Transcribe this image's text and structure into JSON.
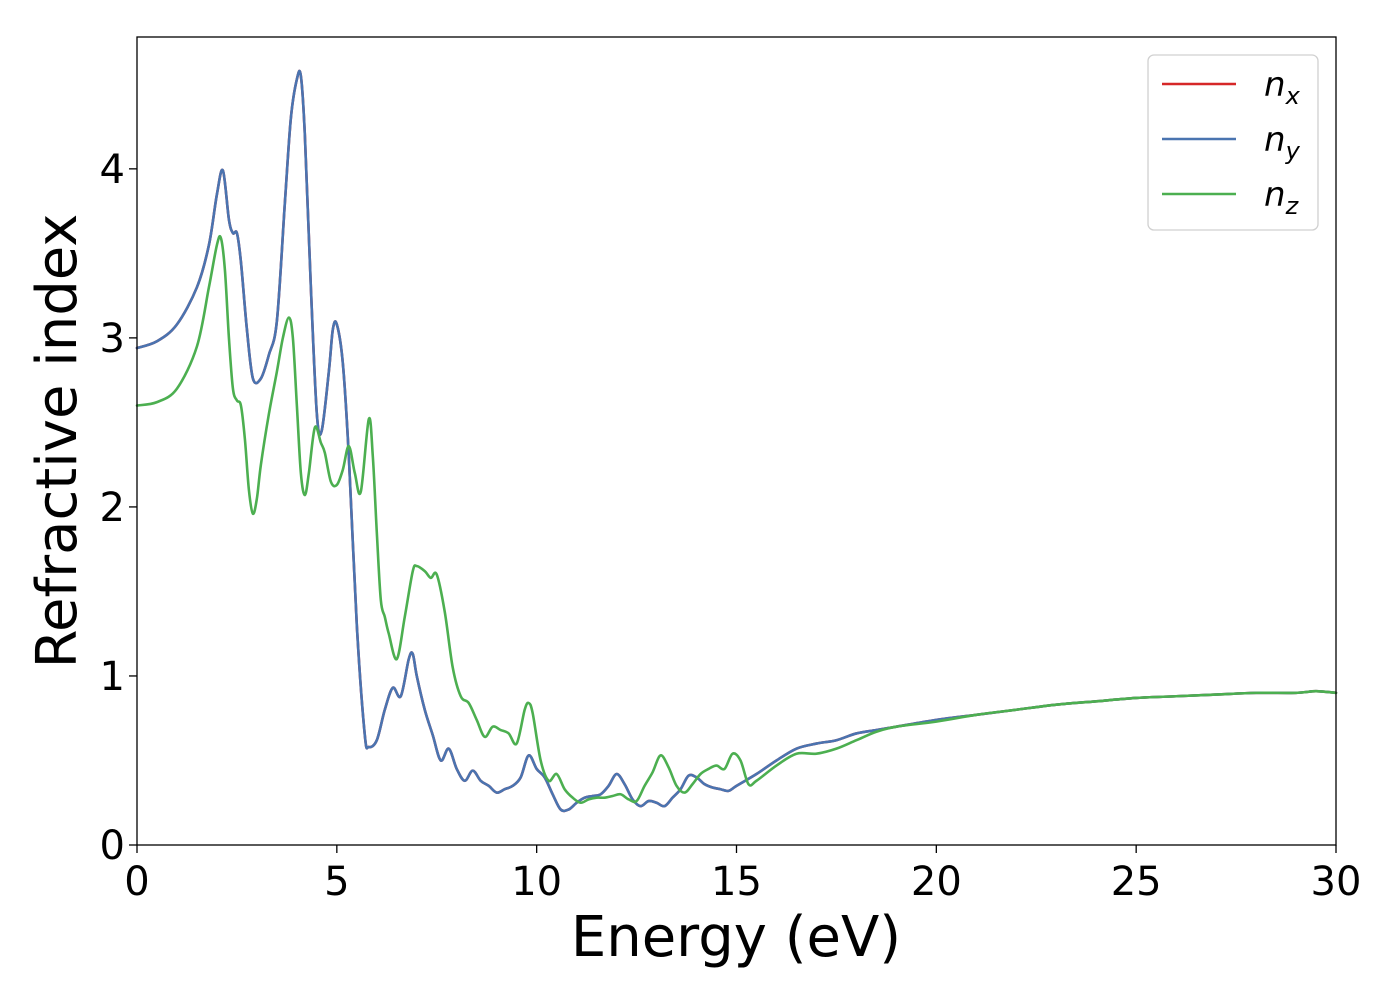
{
  "chart_data": {
    "type": "line",
    "title": "",
    "xlabel": "Energy (eV)",
    "ylabel": "Refractive index",
    "xlim": [
      0,
      30
    ],
    "ylim": [
      0,
      4.78
    ],
    "xticks": [
      0,
      5,
      10,
      15,
      20,
      25,
      30
    ],
    "yticks": [
      0,
      1,
      2,
      3,
      4
    ],
    "xtick_labels": [
      "0",
      "5",
      "10",
      "15",
      "20",
      "25",
      "30"
    ],
    "ytick_labels": [
      "0",
      "1",
      "2",
      "3",
      "4"
    ],
    "grid": false,
    "legend_position": "top-right",
    "series": [
      {
        "name": "n_x",
        "label_base": "n",
        "label_sub": "x",
        "color": "#d62728",
        "x": [
          0,
          0.5,
          1.0,
          1.5,
          1.8,
          2.0,
          2.15,
          2.3,
          2.4,
          2.5,
          2.6,
          2.75,
          2.9,
          3.1,
          3.3,
          3.5,
          3.7,
          3.85,
          4.0,
          4.1,
          4.2,
          4.35,
          4.5,
          4.62,
          4.8,
          4.9,
          5.0,
          5.15,
          5.3,
          5.5,
          5.7,
          5.8,
          6.0,
          6.2,
          6.4,
          6.6,
          6.8,
          6.9,
          7.0,
          7.2,
          7.4,
          7.6,
          7.8,
          8.0,
          8.2,
          8.4,
          8.6,
          8.8,
          9.0,
          9.2,
          9.4,
          9.6,
          9.8,
          10.0,
          10.2,
          10.4,
          10.6,
          10.8,
          11.0,
          11.2,
          11.4,
          11.6,
          11.8,
          12.0,
          12.2,
          12.4,
          12.6,
          12.8,
          13.0,
          13.2,
          13.4,
          13.6,
          13.8,
          14.0,
          14.2,
          14.4,
          14.6,
          14.8,
          15.0,
          15.5,
          16.0,
          16.5,
          17.0,
          17.5,
          18.0,
          18.5,
          19.0,
          20.0,
          21.0,
          22.0,
          23.0,
          24.0,
          25.0,
          26.0,
          27.0,
          28.0,
          29.0,
          29.5,
          30.0
        ],
        "values": [
          2.94,
          2.98,
          3.08,
          3.3,
          3.55,
          3.85,
          3.99,
          3.7,
          3.62,
          3.62,
          3.45,
          3.05,
          2.76,
          2.76,
          2.9,
          3.1,
          3.8,
          4.3,
          4.53,
          4.55,
          4.2,
          3.3,
          2.55,
          2.45,
          2.8,
          3.05,
          3.08,
          2.85,
          2.3,
          1.3,
          0.65,
          0.58,
          0.62,
          0.8,
          0.93,
          0.88,
          1.1,
          1.13,
          1.0,
          0.8,
          0.65,
          0.5,
          0.57,
          0.45,
          0.38,
          0.44,
          0.38,
          0.35,
          0.31,
          0.33,
          0.35,
          0.4,
          0.53,
          0.45,
          0.4,
          0.3,
          0.21,
          0.21,
          0.25,
          0.28,
          0.29,
          0.3,
          0.35,
          0.42,
          0.36,
          0.27,
          0.23,
          0.26,
          0.25,
          0.23,
          0.28,
          0.33,
          0.41,
          0.4,
          0.36,
          0.34,
          0.33,
          0.32,
          0.35,
          0.42,
          0.5,
          0.57,
          0.6,
          0.62,
          0.66,
          0.68,
          0.7,
          0.74,
          0.77,
          0.8,
          0.83,
          0.85,
          0.87,
          0.88,
          0.89,
          0.9,
          0.9,
          0.91,
          0.9
        ]
      },
      {
        "name": "n_y",
        "label_base": "n",
        "label_sub": "y",
        "color": "#4a74b0",
        "x": [
          0,
          0.5,
          1.0,
          1.5,
          1.8,
          2.0,
          2.15,
          2.3,
          2.4,
          2.5,
          2.6,
          2.75,
          2.9,
          3.1,
          3.3,
          3.5,
          3.7,
          3.85,
          4.0,
          4.1,
          4.2,
          4.35,
          4.5,
          4.62,
          4.8,
          4.9,
          5.0,
          5.15,
          5.3,
          5.5,
          5.7,
          5.8,
          6.0,
          6.2,
          6.4,
          6.6,
          6.8,
          6.9,
          7.0,
          7.2,
          7.4,
          7.6,
          7.8,
          8.0,
          8.2,
          8.4,
          8.6,
          8.8,
          9.0,
          9.2,
          9.4,
          9.6,
          9.8,
          10.0,
          10.2,
          10.4,
          10.6,
          10.8,
          11.0,
          11.2,
          11.4,
          11.6,
          11.8,
          12.0,
          12.2,
          12.4,
          12.6,
          12.8,
          13.0,
          13.2,
          13.4,
          13.6,
          13.8,
          14.0,
          14.2,
          14.4,
          14.6,
          14.8,
          15.0,
          15.5,
          16.0,
          16.5,
          17.0,
          17.5,
          18.0,
          18.5,
          19.0,
          20.0,
          21.0,
          22.0,
          23.0,
          24.0,
          25.0,
          26.0,
          27.0,
          28.0,
          29.0,
          29.5,
          30.0
        ],
        "values": [
          2.94,
          2.98,
          3.08,
          3.3,
          3.55,
          3.85,
          3.99,
          3.7,
          3.62,
          3.62,
          3.45,
          3.05,
          2.76,
          2.76,
          2.9,
          3.1,
          3.8,
          4.3,
          4.53,
          4.55,
          4.2,
          3.3,
          2.55,
          2.45,
          2.8,
          3.05,
          3.08,
          2.85,
          2.3,
          1.3,
          0.65,
          0.58,
          0.62,
          0.8,
          0.93,
          0.88,
          1.1,
          1.13,
          1.0,
          0.8,
          0.65,
          0.5,
          0.57,
          0.45,
          0.38,
          0.44,
          0.38,
          0.35,
          0.31,
          0.33,
          0.35,
          0.4,
          0.53,
          0.45,
          0.4,
          0.3,
          0.21,
          0.21,
          0.25,
          0.28,
          0.29,
          0.3,
          0.35,
          0.42,
          0.36,
          0.27,
          0.23,
          0.26,
          0.25,
          0.23,
          0.28,
          0.33,
          0.41,
          0.4,
          0.36,
          0.34,
          0.33,
          0.32,
          0.35,
          0.42,
          0.5,
          0.57,
          0.6,
          0.62,
          0.66,
          0.68,
          0.7,
          0.74,
          0.77,
          0.8,
          0.83,
          0.85,
          0.87,
          0.88,
          0.89,
          0.9,
          0.9,
          0.91,
          0.9
        ]
      },
      {
        "name": "n_z",
        "label_base": "n",
        "label_sub": "z",
        "color": "#4caf50",
        "x": [
          0,
          0.5,
          1.0,
          1.5,
          1.8,
          2.0,
          2.1,
          2.2,
          2.3,
          2.4,
          2.5,
          2.6,
          2.7,
          2.8,
          2.9,
          3.0,
          3.1,
          3.3,
          3.5,
          3.65,
          3.8,
          3.9,
          4.0,
          4.1,
          4.2,
          4.3,
          4.45,
          4.6,
          4.7,
          4.85,
          5.0,
          5.15,
          5.3,
          5.45,
          5.6,
          5.8,
          5.9,
          6.0,
          6.1,
          6.2,
          6.3,
          6.5,
          6.7,
          6.9,
          7.0,
          7.2,
          7.35,
          7.5,
          7.7,
          7.9,
          8.1,
          8.3,
          8.5,
          8.7,
          8.9,
          9.1,
          9.3,
          9.5,
          9.7,
          9.8,
          9.9,
          10.1,
          10.3,
          10.5,
          10.7,
          10.9,
          11.1,
          11.3,
          11.5,
          11.7,
          11.9,
          12.1,
          12.3,
          12.5,
          12.7,
          12.9,
          13.1,
          13.3,
          13.5,
          13.7,
          13.9,
          14.1,
          14.3,
          14.5,
          14.7,
          14.9,
          15.1,
          15.3,
          15.5,
          16.0,
          16.5,
          17.0,
          17.5,
          18.0,
          18.5,
          19.0,
          20.0,
          21.0,
          22.0,
          23.0,
          24.0,
          25.0,
          26.0,
          27.0,
          28.0,
          29.0,
          29.5,
          30.0
        ],
        "values": [
          2.6,
          2.62,
          2.7,
          2.95,
          3.3,
          3.55,
          3.59,
          3.4,
          3.0,
          2.7,
          2.63,
          2.6,
          2.4,
          2.1,
          1.96,
          2.05,
          2.25,
          2.55,
          2.8,
          3.0,
          3.12,
          3.0,
          2.6,
          2.2,
          2.07,
          2.2,
          2.47,
          2.38,
          2.32,
          2.15,
          2.13,
          2.22,
          2.36,
          2.2,
          2.09,
          2.52,
          2.3,
          1.85,
          1.45,
          1.35,
          1.25,
          1.1,
          1.35,
          1.62,
          1.65,
          1.62,
          1.58,
          1.6,
          1.38,
          1.05,
          0.88,
          0.84,
          0.74,
          0.64,
          0.7,
          0.68,
          0.66,
          0.6,
          0.8,
          0.84,
          0.78,
          0.5,
          0.38,
          0.42,
          0.33,
          0.28,
          0.25,
          0.27,
          0.28,
          0.28,
          0.29,
          0.3,
          0.27,
          0.26,
          0.35,
          0.43,
          0.53,
          0.46,
          0.35,
          0.31,
          0.36,
          0.42,
          0.45,
          0.47,
          0.45,
          0.54,
          0.5,
          0.36,
          0.38,
          0.47,
          0.54,
          0.54,
          0.57,
          0.62,
          0.67,
          0.7,
          0.73,
          0.77,
          0.8,
          0.83,
          0.85,
          0.87,
          0.88,
          0.89,
          0.9,
          0.9,
          0.91,
          0.9
        ]
      }
    ]
  }
}
